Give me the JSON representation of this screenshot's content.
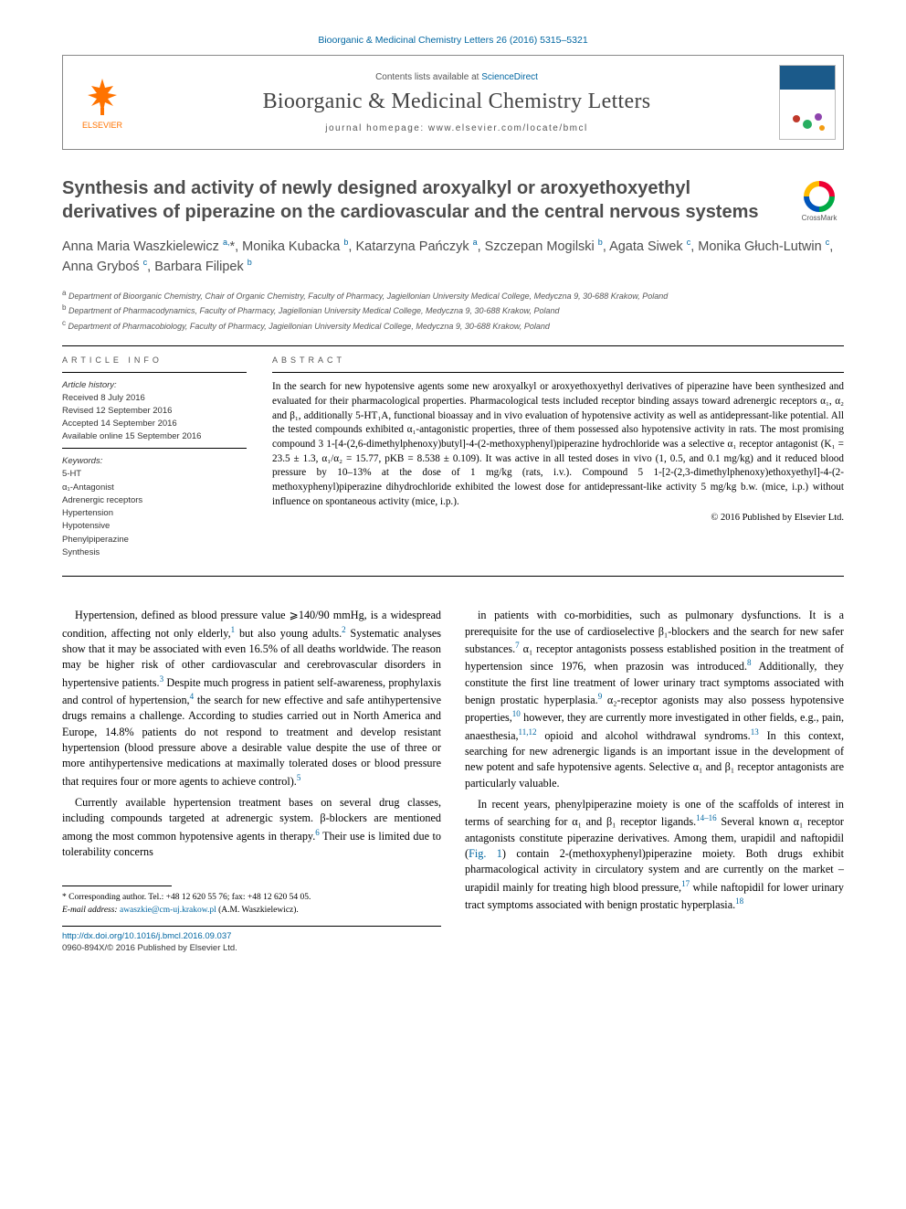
{
  "citation": "Bioorganic & Medicinal Chemistry Letters 26 (2016) 5315–5321",
  "masthead": {
    "publisher_label": "ELSEVIER",
    "contents_prefix": "Contents lists available at ",
    "contents_link": "ScienceDirect",
    "journal_name": "Bioorganic & Medicinal Chemistry Letters",
    "homepage_prefix": "journal homepage: ",
    "homepage_url": "www.elsevier.com/locate/bmcl"
  },
  "crossmark_label": "CrossMark",
  "title": "Synthesis and activity of newly designed aroxyalkyl or aroxyethoxyethyl derivatives of piperazine on the cardiovascular and the central nervous systems",
  "authors_html": "Anna Maria Waszkielewicz <sup>a,</sup>*, Monika Kubacka <sup>b</sup>, Katarzyna Pańczyk <sup>a</sup>, Szczepan Mogilski <sup>b</sup>, Agata Siwek <sup>c</sup>, Monika Głuch-Lutwin <sup>c</sup>, Anna Gryboś <sup>c</sup>, Barbara Filipek <sup>b</sup>",
  "affiliations": [
    "a Department of Bioorganic Chemistry, Chair of Organic Chemistry, Faculty of Pharmacy, Jagiellonian University Medical College, Medyczna 9, 30-688 Krakow, Poland",
    "b Department of Pharmacodynamics, Faculty of Pharmacy, Jagiellonian University Medical College, Medyczna 9, 30-688 Krakow, Poland",
    "c Department of Pharmacobiology, Faculty of Pharmacy, Jagiellonian University Medical College, Medyczna 9, 30-688 Krakow, Poland"
  ],
  "info": {
    "heading": "ARTICLE INFO",
    "history_label": "Article history:",
    "history": [
      "Received 8 July 2016",
      "Revised 12 September 2016",
      "Accepted 14 September 2016",
      "Available online 15 September 2016"
    ],
    "keywords_label": "Keywords:",
    "keywords": [
      "5-HT",
      "α₁-Antagonist",
      "Adrenergic receptors",
      "Hypertension",
      "Hypotensive",
      "Phenylpiperazine",
      "Synthesis"
    ]
  },
  "abstract": {
    "heading": "ABSTRACT",
    "text": "In the search for new hypotensive agents some new aroxyalkyl or aroxyethoxyethyl derivatives of piperazine have been synthesized and evaluated for their pharmacological properties. Pharmacological tests included receptor binding assays toward adrenergic receptors α₁, α₂ and β₁, additionally 5-HT₁A, functional bioassay and in vivo evaluation of hypotensive activity as well as antidepressant-like potential. All the tested compounds exhibited α₁-antagonistic properties, three of them possessed also hypotensive activity in rats. The most promising compound 3 1-[4-(2,6-dimethylphenoxy)butyl]-4-(2-methoxyphenyl)piperazine hydrochloride was a selective α₁ receptor antagonist (K₁ = 23.5 ± 1.3, α₁/α₂ = 15.77, pKB = 8.538 ± 0.109). It was active in all tested doses in vivo (1, 0.5, and 0.1 mg/kg) and it reduced blood pressure by 10–13% at the dose of 1 mg/kg (rats, i.v.). Compound 5 1-[2-(2,3-dimethylphenoxy)ethoxyethyl]-4-(2-methoxyphenyl)piperazine dihydrochloride exhibited the lowest dose for antidepressant-like activity 5 mg/kg b.w. (mice, i.p.) without influence on spontaneous activity (mice, i.p.).",
    "copyright": "© 2016 Published by Elsevier Ltd."
  },
  "body": {
    "p1": "Hypertension, defined as blood pressure value ⩾140/90 mmHg, is a widespread condition, affecting not only elderly,¹ but also young adults.² Systematic analyses show that it may be associated with even 16.5% of all deaths worldwide. The reason may be higher risk of other cardiovascular and cerebrovascular disorders in hypertensive patients.³ Despite much progress in patient self-awareness, prophylaxis and control of hypertension,⁴ the search for new effective and safe antihypertensive drugs remains a challenge. According to studies carried out in North America and Europe, 14.8% patients do not respond to treatment and develop resistant hypertension (blood pressure above a desirable value despite the use of three or more antihypertensive medications at maximally tolerated doses or blood pressure that requires four or more agents to achieve control).⁵",
    "p2": "Currently available hypertension treatment bases on several drug classes, including compounds targeted at adrenergic system. β-blockers are mentioned among the most common hypotensive agents in therapy.⁶ Their use is limited due to tolerability concerns",
    "p3": "in patients with co-morbidities, such as pulmonary dysfunctions. It is a prerequisite for the use of cardioselective β₁-blockers and the search for new safer substances.⁷ α₁ receptor antagonists possess established position in the treatment of hypertension since 1976, when prazosin was introduced.⁸ Additionally, they constitute the first line treatment of lower urinary tract symptoms associated with benign prostatic hyperplasia.⁹ α₂-receptor agonists may also possess hypotensive properties,¹⁰ however, they are currently more investigated in other fields, e.g., pain, anaesthesia,¹¹,¹² opioid and alcohol withdrawal syndroms.¹³ In this context, searching for new adrenergic ligands is an important issue in the development of new potent and safe hypotensive agents. Selective α₁ and β₁ receptor antagonists are particularly valuable.",
    "p4": "In recent years, phenylpiperazine moiety is one of the scaffolds of interest in terms of searching for α₁ and β₁ receptor ligands.¹⁴⁻¹⁶ Several known α₁ receptor antagonists constitute piperazine derivatives. Among them, urapidil and naftopidil (Fig. 1) contain 2-(methoxyphenyl)piperazine moiety. Both drugs exhibit pharmacological activity in circulatory system and are currently on the market – urapidil mainly for treating high blood pressure,¹⁷ while naftopidil for lower urinary tract symptoms associated with benign prostatic hyperplasia.¹⁸"
  },
  "footnotes": {
    "corr": "* Corresponding author. Tel.: +48 12 620 55 76; fax: +48 12 620 54 05.",
    "email_label": "E-mail address: ",
    "email": "awaszkie@cm-uj.krakow.pl",
    "email_suffix": " (A.M. Waszkielewicz)."
  },
  "footer": {
    "doi": "http://dx.doi.org/10.1016/j.bmcl.2016.09.037",
    "issn_copy": "0960-894X/© 2016 Published by Elsevier Ltd."
  },
  "colors": {
    "link": "#0066a1",
    "heading": "#4d4d4d",
    "elsevier_orange": "#ff7300"
  }
}
